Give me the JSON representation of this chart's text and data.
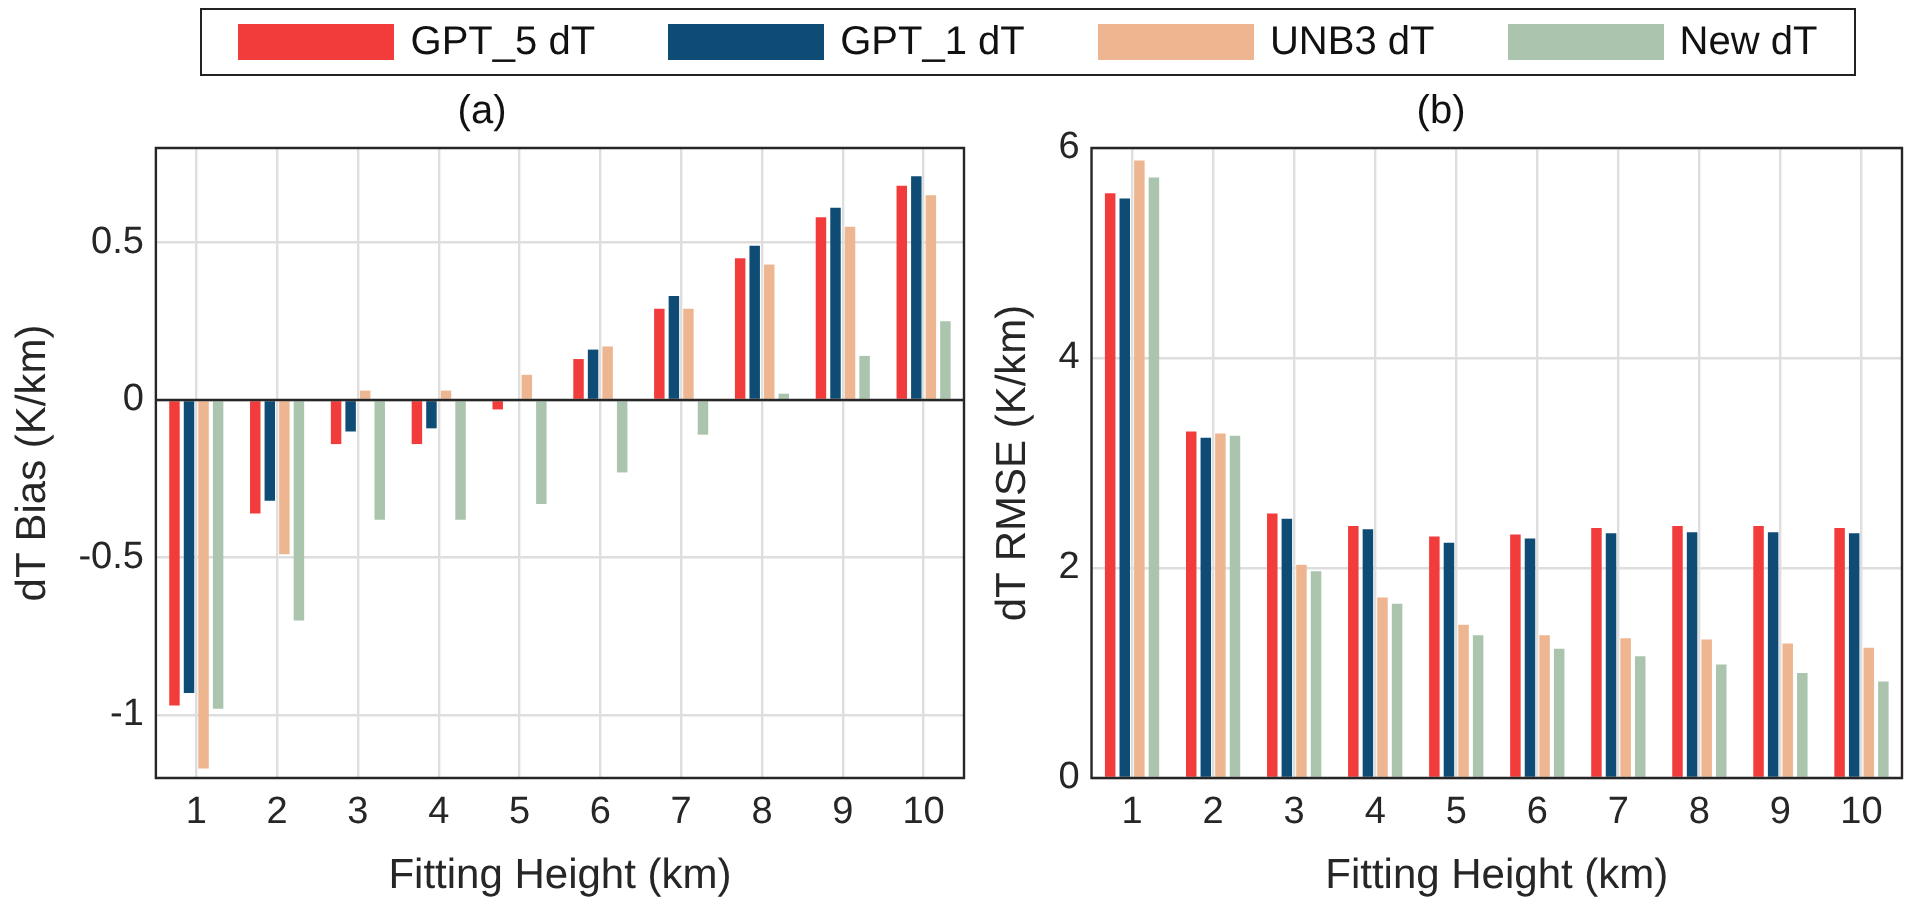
{
  "chart_data": [
    {
      "type": "bar",
      "title": "(a)",
      "xlabel": "Fitting Height (km)",
      "ylabel": "dT Bias (K/km)",
      "categories": [
        "1",
        "2",
        "3",
        "4",
        "5",
        "6",
        "7",
        "8",
        "9",
        "10"
      ],
      "series": [
        {
          "name": "GPT_5 dT",
          "color": "#f23c3c",
          "values": [
            -0.97,
            -0.36,
            -0.14,
            -0.14,
            -0.03,
            0.13,
            0.29,
            0.45,
            0.58,
            0.68
          ]
        },
        {
          "name": "GPT_1 dT",
          "color": "#0f4c75",
          "values": [
            -0.93,
            -0.32,
            -0.1,
            -0.09,
            0,
            0.16,
            0.33,
            0.49,
            0.61,
            0.71
          ]
        },
        {
          "name": "UNB3 dT",
          "color": "#edb690",
          "values": [
            -1.17,
            -0.49,
            0.03,
            0.03,
            0.08,
            0.17,
            0.29,
            0.43,
            0.55,
            0.65
          ]
        },
        {
          "name": "New dT",
          "color": "#aac4ad",
          "values": [
            -0.98,
            -0.7,
            -0.38,
            -0.38,
            -0.33,
            -0.23,
            -0.11,
            0.02,
            0.14,
            0.25
          ]
        }
      ],
      "ylim": [
        -1.2,
        0.8
      ],
      "yticks": [
        {
          "value": -1,
          "label": "-1"
        },
        {
          "value": -0.5,
          "label": "-0.5"
        },
        0,
        0.5
      ],
      "grid": true,
      "legend": "top"
    },
    {
      "type": "bar",
      "title": "(b)",
      "xlabel": "Fitting Height (km)",
      "ylabel": "dT RMSE (K/km)",
      "categories": [
        "1",
        "2",
        "3",
        "4",
        "5",
        "6",
        "7",
        "8",
        "9",
        "10"
      ],
      "series": [
        {
          "name": "GPT_5 dT",
          "color": "#f23c3c",
          "values": [
            5.57,
            3.3,
            2.52,
            2.4,
            2.3,
            2.32,
            2.38,
            2.4,
            2.4,
            2.38
          ]
        },
        {
          "name": "GPT_1 dT",
          "color": "#0f4c75",
          "values": [
            5.52,
            3.24,
            2.47,
            2.37,
            2.24,
            2.28,
            2.33,
            2.34,
            2.34,
            2.33
          ]
        },
        {
          "name": "UNB3 dT",
          "color": "#edb690",
          "values": [
            5.88,
            3.28,
            2.03,
            1.72,
            1.46,
            1.36,
            1.33,
            1.32,
            1.28,
            1.24
          ]
        },
        {
          "name": "New dT",
          "color": "#aac4ad",
          "values": [
            5.72,
            3.26,
            1.97,
            1.66,
            1.36,
            1.23,
            1.16,
            1.08,
            1.0,
            0.92
          ]
        }
      ],
      "ylim": [
        0,
        6
      ],
      "yticks": [
        0,
        2,
        4,
        6
      ],
      "grid": true,
      "legend": "top"
    }
  ]
}
